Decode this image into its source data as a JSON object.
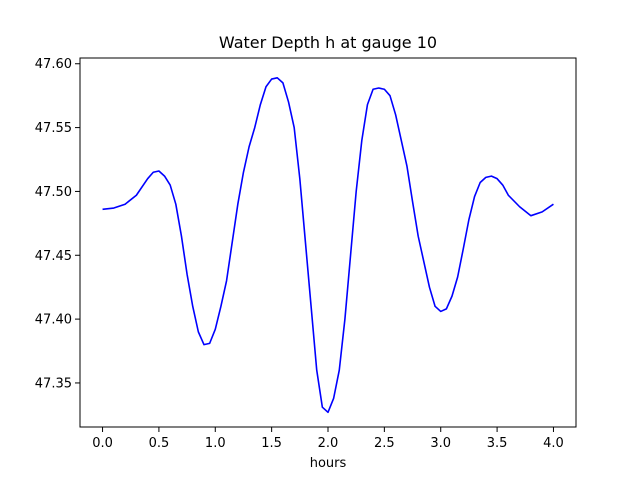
{
  "chart_data": {
    "type": "line",
    "title": "Water Depth h at gauge 10",
    "xlabel": "hours",
    "ylabel": "",
    "xlim": [
      -0.2,
      4.2
    ],
    "ylim": [
      47.3155,
      47.6045
    ],
    "xticks": [
      0.0,
      0.5,
      1.0,
      1.5,
      2.0,
      2.5,
      3.0,
      3.5,
      4.0
    ],
    "xtick_labels": [
      "0.0",
      "0.5",
      "1.0",
      "1.5",
      "2.0",
      "2.5",
      "3.0",
      "3.5",
      "4.0"
    ],
    "yticks": [
      47.35,
      47.4,
      47.45,
      47.5,
      47.55,
      47.6
    ],
    "ytick_labels": [
      "47.35",
      "47.40",
      "47.45",
      "47.50",
      "47.55",
      "47.60"
    ],
    "grid": false,
    "series": [
      {
        "color": "#0000ff",
        "x": [
          0.0,
          0.1,
          0.2,
          0.3,
          0.4,
          0.45,
          0.5,
          0.55,
          0.6,
          0.65,
          0.7,
          0.75,
          0.8,
          0.85,
          0.9,
          0.95,
          1.0,
          1.05,
          1.1,
          1.15,
          1.2,
          1.25,
          1.3,
          1.35,
          1.4,
          1.45,
          1.5,
          1.55,
          1.6,
          1.65,
          1.7,
          1.75,
          1.8,
          1.85,
          1.9,
          1.95,
          2.0,
          2.05,
          2.1,
          2.15,
          2.2,
          2.25,
          2.3,
          2.35,
          2.4,
          2.45,
          2.5,
          2.55,
          2.6,
          2.65,
          2.7,
          2.75,
          2.8,
          2.85,
          2.9,
          2.95,
          3.0,
          3.05,
          3.1,
          3.15,
          3.2,
          3.25,
          3.3,
          3.35,
          3.4,
          3.45,
          3.5,
          3.55,
          3.6,
          3.7,
          3.8,
          3.9,
          4.0
        ],
        "y": [
          47.486,
          47.487,
          47.49,
          47.497,
          47.51,
          47.515,
          47.516,
          47.512,
          47.505,
          47.49,
          47.465,
          47.435,
          47.41,
          47.39,
          47.38,
          47.381,
          47.392,
          47.41,
          47.43,
          47.46,
          47.49,
          47.515,
          47.535,
          47.55,
          47.568,
          47.582,
          47.588,
          47.589,
          47.585,
          47.57,
          47.55,
          47.51,
          47.46,
          47.41,
          47.36,
          47.331,
          47.327,
          47.338,
          47.36,
          47.4,
          47.45,
          47.5,
          47.54,
          47.568,
          47.58,
          47.581,
          47.58,
          47.575,
          47.56,
          47.54,
          47.52,
          47.492,
          47.465,
          47.445,
          47.425,
          47.41,
          47.406,
          47.408,
          47.418,
          47.433,
          47.455,
          47.478,
          47.496,
          47.507,
          47.511,
          47.512,
          47.51,
          47.505,
          47.497,
          47.488,
          47.481,
          47.484,
          47.49
        ]
      }
    ]
  }
}
